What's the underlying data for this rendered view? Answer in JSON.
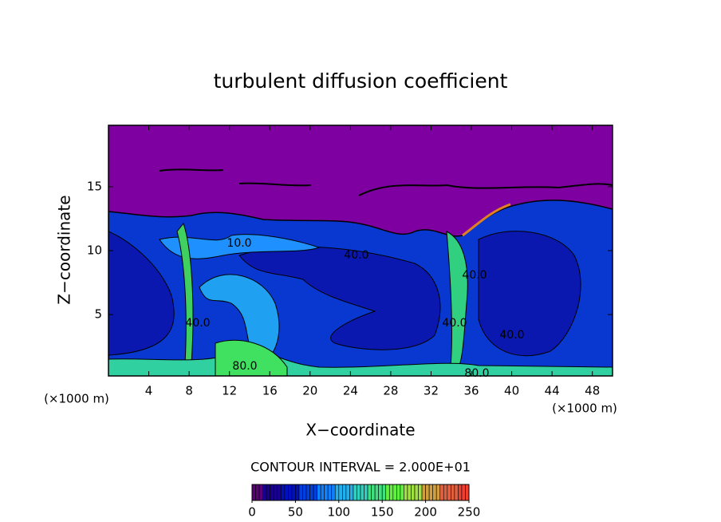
{
  "chart_data": {
    "type": "contour",
    "title": "turbulent diffusion coefficient",
    "x_label": "X−coordinate",
    "y_label": "Z−coordinate",
    "x_units": [
      "(×1000 m)",
      "(×1000 m)"
    ],
    "xlim": [
      0,
      50
    ],
    "xticks": [
      4,
      8,
      12,
      16,
      20,
      24,
      28,
      32,
      36,
      40,
      44,
      48
    ],
    "ylim": [
      0.2,
      19.8
    ],
    "yticks": [
      5,
      10,
      15
    ],
    "contour_labels": [
      "40.0",
      "40.0",
      "40.0",
      "40.0",
      "40.0",
      "80.0",
      "80.0",
      "10.0"
    ],
    "contour_interval": "CONTOUR INTERVAL = 2.000E+01",
    "colorbar": {
      "lim": [
        0,
        250
      ],
      "ticks": [
        0,
        50,
        100,
        150,
        200,
        250
      ],
      "colors": [
        "#5a0078",
        "#1a0090",
        "#0010c0",
        "#0040e0",
        "#1080ff",
        "#20b0f0",
        "#30d0c0",
        "#40e080",
        "#60f040",
        "#a0e040",
        "#d0a040",
        "#e06040",
        "#f04030"
      ]
    }
  }
}
